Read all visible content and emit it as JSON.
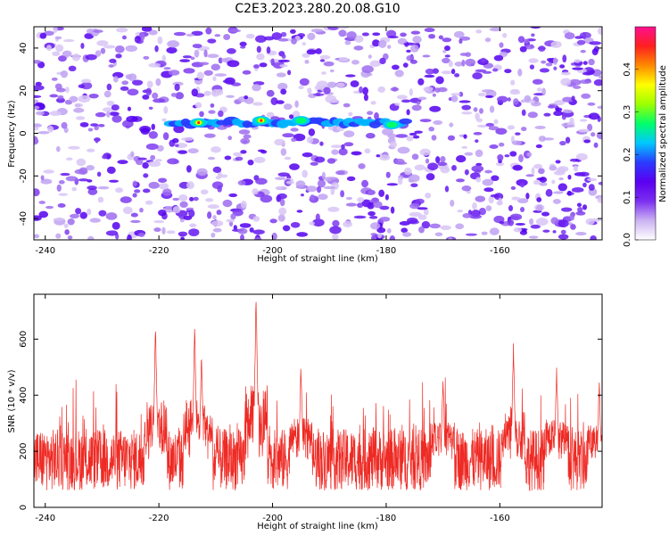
{
  "title": "C2E3.2023.280.20.08.G10",
  "chart_data": [
    {
      "type": "heatmap",
      "xlabel": "Height of straight line (km)",
      "ylabel": "Frequency (Hz)",
      "xlim": [
        -242,
        -142
      ],
      "ylim": [
        -50,
        50
      ],
      "xticks": [
        "-240",
        "-220",
        "-200",
        "-180",
        "-160"
      ],
      "yticks": [
        "40",
        "20",
        "0",
        "-20",
        "-40"
      ],
      "grid": false,
      "colorbar": {
        "label": "Normalized spectral amplitude",
        "range": [
          0.0,
          0.5
        ],
        "ticks": [
          "0.0",
          "0.1",
          "0.2",
          "0.3",
          "0.4"
        ],
        "colors": [
          "#ffffff",
          "#cbb2f2",
          "#7b2ff0",
          "#5a00f0",
          "#2a3cff",
          "#00c8ff",
          "#00ff6a",
          "#9cff00",
          "#ffff00",
          "#ff8a00",
          "#ff1f1f",
          "#ff1090"
        ]
      },
      "ridge": {
        "frequency_hz": 5,
        "x_range": [
          -218,
          -176
        ],
        "peaks": [
          {
            "x": -213,
            "y": 5,
            "value": 0.42
          },
          {
            "x": -202,
            "y": 6,
            "value": 0.45
          },
          {
            "x": -195,
            "y": 6,
            "value": 0.3
          },
          {
            "x": -179,
            "y": 4,
            "value": 0.28
          }
        ]
      }
    },
    {
      "type": "line",
      "xlabel": "Height of straight line (km)",
      "ylabel": "SNR (10 * v/v)",
      "xlim": [
        -242,
        -142
      ],
      "ylim": [
        0,
        760
      ],
      "xticks": [
        "-240",
        "-220",
        "-200",
        "-180",
        "-160"
      ],
      "yticks": [
        "0",
        "200",
        "400",
        "600"
      ],
      "grid": false,
      "series": [
        {
          "color": "#ee2a24",
          "baseline_snr": 170,
          "peaks": [
            {
              "x": -220.6,
              "y": 650
            },
            {
              "x": -213.7,
              "y": 650
            },
            {
              "x": -212.5,
              "y": 540
            },
            {
              "x": -202.9,
              "y": 760
            },
            {
              "x": -195.0,
              "y": 500
            },
            {
              "x": -170.0,
              "y": 470
            },
            {
              "x": -157.6,
              "y": 580
            },
            {
              "x": -150.0,
              "y": 490
            },
            {
              "x": -142.5,
              "y": 450
            }
          ]
        }
      ]
    }
  ]
}
